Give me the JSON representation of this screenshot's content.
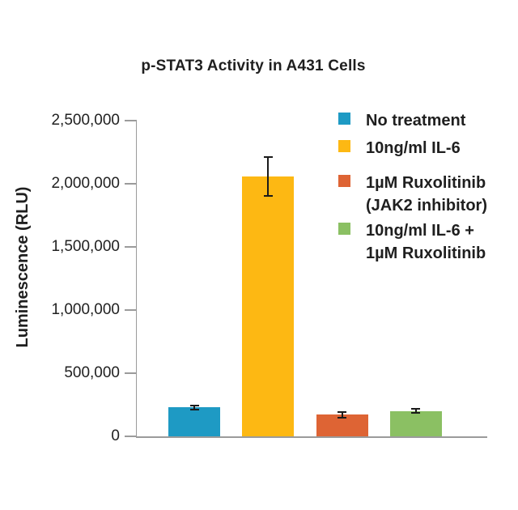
{
  "chart_data": {
    "type": "bar",
    "title": "p-STAT3 Activity in A431 Cells",
    "xlabel": "",
    "ylabel": "Luminescence (RLU)",
    "ylim": [
      0,
      2500000
    ],
    "ytick_interval": 500000,
    "ytick_labels": [
      "0",
      "500,000",
      "1,000,000",
      "1,500,000",
      "2,000,000",
      "2,500,000"
    ],
    "grid": false,
    "legend_position": "upper right",
    "categories": [
      "No treatment",
      "10ng/ml IL-6",
      "1µM Ruxolitinib (JAK2 inhibitor)",
      "10ng/ml IL-6 + 1µM Ruxolitinib"
    ],
    "values": [
      230000,
      2060000,
      170000,
      200000
    ],
    "errors": [
      13000,
      150000,
      18000,
      13000
    ],
    "bar_colors": [
      "#1E9AC4",
      "#FDB813",
      "#DE6434",
      "#8BC063"
    ]
  },
  "legend": {
    "items": [
      {
        "label": "No treatment",
        "lines": [
          "No treatment"
        ],
        "color": "#1E9AC4"
      },
      {
        "label": "10ng/ml IL-6",
        "lines": [
          "10ng/ml IL-6"
        ],
        "color": "#FDB813"
      },
      {
        "label": "1µM Ruxolitinib (JAK2 inhibitor)",
        "lines": [
          "1µM Ruxolitinib",
          "(JAK2 inhibitor)"
        ],
        "color": "#DE6434"
      },
      {
        "label": "10ng/ml IL-6 + 1µM Ruxolitinib",
        "lines": [
          "10ng/ml IL-6 +",
          "1µM Ruxolitinib"
        ],
        "color": "#8BC063"
      }
    ]
  },
  "colors": {
    "axis": "#9b9b9b",
    "text": "#1f1f1f",
    "error_bar": "#1a1a1a",
    "background": "#ffffff"
  }
}
